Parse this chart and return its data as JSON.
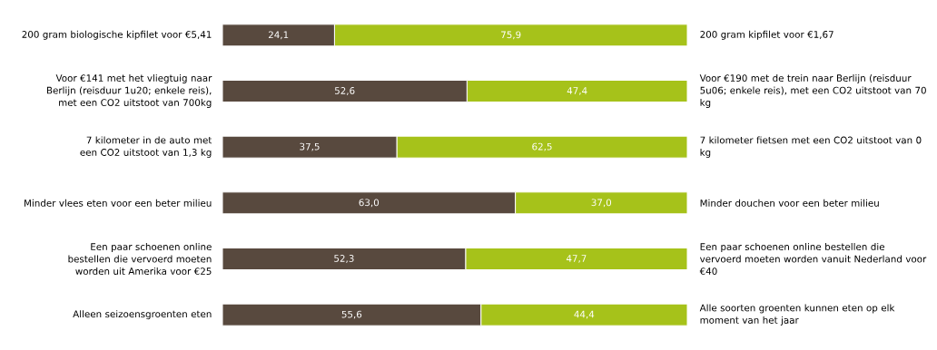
{
  "chart_data": {
    "type": "bar",
    "orientation": "horizontal",
    "stacked": true,
    "categories": [
      "200 gram biologische kipfilet voor €5,41",
      "Voor €141 met het vliegtuig naar Berlijn (reisduur 1u20; enkele reis), met een CO2 uitstoot van 700kg",
      "7 kilometer in de auto met een CO2 uitstoot van 1,3 kg",
      "Minder vlees eten voor een beter milieu",
      "Een paar schoenen online bestellen die vervoerd moeten worden uit Amerika voor €25",
      "Alleen seizoensgroenten eten"
    ],
    "series": [
      {
        "color": "#58493e",
        "values": [
          24.1,
          52.6,
          37.5,
          63.0,
          52.3,
          55.6
        ],
        "value_labels": [
          "24,1",
          "52,6",
          "37,5",
          "63,0",
          "52,3",
          "55,6"
        ]
      },
      {
        "color": "#a6c21a",
        "values": [
          75.9,
          47.4,
          62.5,
          37.0,
          47.7,
          44.4
        ],
        "value_labels": [
          "75,9",
          "47,4",
          "62,5",
          "37,0",
          "47,7",
          "44,4"
        ]
      }
    ],
    "annotations": [
      "200 gram kipfilet voor €1,67",
      "Voor €190 met de trein naar Berlijn (reisduur 5u06; enkele reis), met een CO2 uitstoot van 70 kg",
      "7 kilometer fietsen met een CO2 uitstoot van 0 kg",
      "Minder douchen voor een beter milieu",
      "Een paar schoenen online bestellen die vervoerd moeten worden vanuit Nederland voor €40",
      "Alle soorten groenten kunnen eten op elk moment van het jaar"
    ]
  }
}
